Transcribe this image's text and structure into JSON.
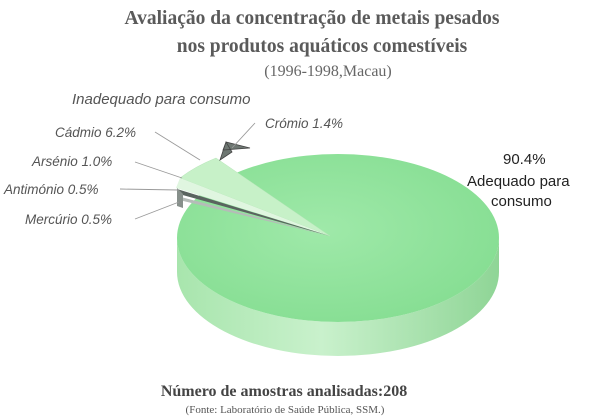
{
  "chart_data": {
    "type": "pie",
    "title_line1": "Avaliação da concentração de metais pesados",
    "title_line2": "nos produtos aquáticos comestíveis",
    "subtitle": "(1996-1998,Macau)",
    "group_label": "Inadequado para consumo",
    "slices": [
      {
        "label": "Adequado para consumo",
        "value": 90.4,
        "display": "90.4%",
        "color": "#8fe39a"
      },
      {
        "label": "Crómio",
        "value": 1.4,
        "display": "Crómio 1.4%",
        "color": "#6d7670"
      },
      {
        "label": "Cádmio",
        "value": 6.2,
        "display": "Cádmio 6.2%",
        "color": "#c4f2c6"
      },
      {
        "label": "Arsénio",
        "value": 1.0,
        "display": "Arsénio 1.0%",
        "color": "#dff7df"
      },
      {
        "label": "Antimónio",
        "value": 0.5,
        "display": "Antimónio 0.5%",
        "color": "#4f5a55"
      },
      {
        "label": "Mercúrio",
        "value": 0.5,
        "display": "Mercúrio 0.5%",
        "color": "#aab2ad"
      }
    ],
    "adequate_label_line1": "Adequado para",
    "adequate_label_line2": "consumo",
    "footer_main": "Número de amostras analisadas:208",
    "footer_source": "(Fonte: Laboratório de Saúde Pública, SSM.)"
  }
}
